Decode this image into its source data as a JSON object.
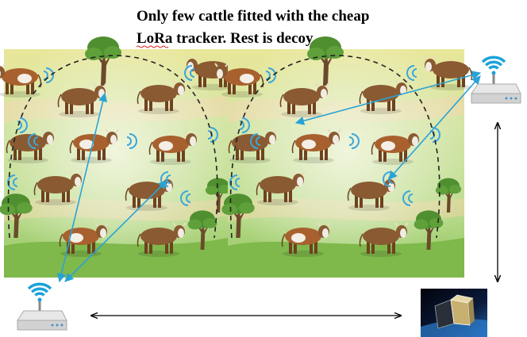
{
  "title": {
    "lines": [
      "Only few cattle fitted with the cheap",
      "LoRa tracker. Rest is decoy"
    ]
  }
}
